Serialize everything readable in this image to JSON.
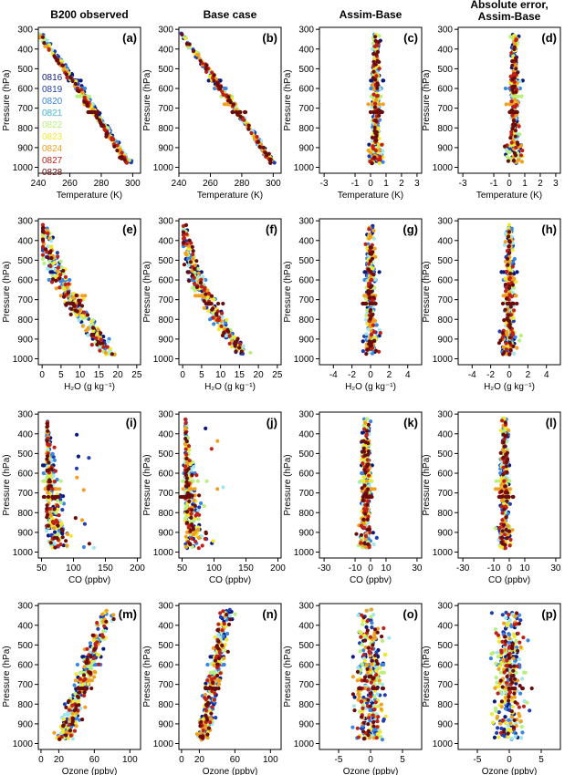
{
  "figure": {
    "column_titles": [
      "B200 observed",
      "Base case",
      "Assim-Base",
      "Absolute error,\nAssim-Base"
    ],
    "flight_colors": {
      "0816": "#0a1a7a",
      "0819": "#1f3fb0",
      "0820": "#3a86e0",
      "0821": "#9fe6f0",
      "0822": "#b8f07a",
      "0823": "#f2e830",
      "0824": "#f0a020",
      "0827": "#c02018",
      "0828": "#6a0c0c"
    },
    "legend_labels": [
      "0816",
      "0819",
      "0820",
      "0821",
      "0822",
      "0823",
      "0824",
      "0827",
      "0828"
    ]
  },
  "chart_data": [
    {
      "id": "a",
      "type": "scatter",
      "label": "(a)",
      "xlabel": "Temperature (K)",
      "ylabel": "Pressure (hPa)",
      "xlim": [
        240,
        305
      ],
      "ylim": [
        1030,
        290
      ],
      "xticks": [
        "240",
        "260",
        "280",
        "300"
      ],
      "yticks": [
        "300",
        "400",
        "500",
        "600",
        "700",
        "800",
        "900",
        "1000"
      ],
      "profile": "temp_obs"
    },
    {
      "id": "b",
      "type": "scatter",
      "label": "(b)",
      "xlabel": "Temperature (K)",
      "ylabel": "",
      "xlim": [
        240,
        305
      ],
      "ylim": [
        1030,
        290
      ],
      "xticks": [
        "240",
        "260",
        "280",
        "300"
      ],
      "yticks": [
        "300",
        "400",
        "500",
        "600",
        "700",
        "800",
        "900",
        "1000"
      ],
      "profile": "temp_base"
    },
    {
      "id": "c",
      "type": "scatter",
      "label": "(c)",
      "xlabel": "Temperature (K)",
      "ylabel": "",
      "xlim": [
        -3.3,
        3.3
      ],
      "ylim": [
        1030,
        290
      ],
      "xticks": [
        "-3",
        "-1",
        "0",
        "1",
        "2",
        "3"
      ],
      "yticks": [
        "300",
        "400",
        "500",
        "600",
        "700",
        "800",
        "900",
        "1000"
      ],
      "profile": "temp_diff"
    },
    {
      "id": "d",
      "type": "scatter",
      "label": "(d)",
      "xlabel": "Temperature (K)",
      "ylabel": "",
      "xlim": [
        -3.3,
        3.3
      ],
      "ylim": [
        1030,
        290
      ],
      "xticks": [
        "-3",
        "-1",
        "0",
        "1",
        "2",
        "3"
      ],
      "yticks": [
        "300",
        "400",
        "500",
        "600",
        "700",
        "800",
        "900",
        "1000"
      ],
      "profile": "temp_diff"
    },
    {
      "id": "e",
      "type": "scatter",
      "label": "(e)",
      "xlabel": "H₂O (g kg⁻¹)",
      "ylabel": "Pressure (hPa)",
      "xlim": [
        -1,
        26
      ],
      "ylim": [
        1030,
        290
      ],
      "xticks": [
        "0",
        "5",
        "10",
        "15",
        "20",
        "25"
      ],
      "yticks": [
        "300",
        "400",
        "500",
        "600",
        "700",
        "800",
        "900",
        "1000"
      ],
      "profile": "h2o_obs"
    },
    {
      "id": "f",
      "type": "scatter",
      "label": "(f)",
      "xlabel": "H₂O (g kg⁻¹)",
      "ylabel": "Pressure (hPa)",
      "xlim": [
        -1,
        26
      ],
      "ylim": [
        1030,
        290
      ],
      "xticks": [
        "0",
        "5",
        "10",
        "15",
        "20",
        "25"
      ],
      "yticks": [
        "300",
        "400",
        "500",
        "600",
        "700",
        "800",
        "900",
        "1000"
      ],
      "profile": "h2o_base"
    },
    {
      "id": "g",
      "type": "scatter",
      "label": "(g)",
      "xlabel": "H₂O (g kg⁻¹)",
      "ylabel": "Pressure (hPa)",
      "xlim": [
        -5.5,
        5.5
      ],
      "ylim": [
        1030,
        290
      ],
      "xticks": [
        "-4",
        "-2",
        "0",
        "2",
        "4"
      ],
      "yticks": [
        "300",
        "400",
        "500",
        "600",
        "700",
        "800",
        "900",
        "1000"
      ],
      "profile": "h2o_diff"
    },
    {
      "id": "h",
      "type": "scatter",
      "label": "(h)",
      "xlabel": "H₂O (g kg⁻¹)",
      "ylabel": "Pressure (hPa)",
      "xlim": [
        -5.5,
        5.5
      ],
      "ylim": [
        1030,
        290
      ],
      "xticks": [
        "-4",
        "-2",
        "0",
        "2",
        "4"
      ],
      "yticks": [
        "300",
        "400",
        "500",
        "600",
        "700",
        "800",
        "900",
        "1000"
      ],
      "profile": "h2o_diff"
    },
    {
      "id": "i",
      "type": "scatter",
      "label": "(i)",
      "xlabel": "CO (ppbv)",
      "ylabel": "Pressure (hPa)",
      "xlim": [
        45,
        205
      ],
      "ylim": [
        1030,
        290
      ],
      "xticks": [
        "50",
        "100",
        "150",
        "200"
      ],
      "yticks": [
        "300",
        "400",
        "500",
        "600",
        "700",
        "800",
        "900",
        "1000"
      ],
      "profile": "co_obs"
    },
    {
      "id": "j",
      "type": "scatter",
      "label": "(j)",
      "xlabel": "CO (ppbv)",
      "ylabel": "Pressure (hPa)",
      "xlim": [
        45,
        205
      ],
      "ylim": [
        1030,
        290
      ],
      "xticks": [
        "50",
        "100",
        "150",
        "200"
      ],
      "yticks": [
        "300",
        "400",
        "500",
        "600",
        "700",
        "800",
        "900",
        "1000"
      ],
      "profile": "co_base"
    },
    {
      "id": "k",
      "type": "scatter",
      "label": "(k)",
      "xlabel": "CO (ppbv)",
      "ylabel": "Pressure (hPa)",
      "xlim": [
        -33,
        33
      ],
      "ylim": [
        1030,
        290
      ],
      "xticks": [
        "-30",
        "-10",
        "0",
        "10",
        "30"
      ],
      "yticks": [
        "300",
        "400",
        "500",
        "600",
        "700",
        "800",
        "900",
        "1000"
      ],
      "profile": "co_diff"
    },
    {
      "id": "l",
      "type": "scatter",
      "label": "(l)",
      "xlabel": "CO (ppbv)",
      "ylabel": "Pressure (hPa)",
      "xlim": [
        -33,
        33
      ],
      "ylim": [
        1030,
        290
      ],
      "xticks": [
        "-30",
        "-10",
        "0",
        "10",
        "30"
      ],
      "yticks": [
        "300",
        "400",
        "500",
        "600",
        "700",
        "800",
        "900",
        "1000"
      ],
      "profile": "co_diff"
    },
    {
      "id": "m",
      "type": "scatter",
      "label": "(m)",
      "xlabel": "Ozone (ppbv)",
      "ylabel": "Pressure (hPa)",
      "xlim": [
        -3,
        112
      ],
      "ylim": [
        1030,
        290
      ],
      "xticks": [
        "0",
        "20",
        "60",
        "100"
      ],
      "yticks": [
        "300",
        "400",
        "500",
        "600",
        "700",
        "800",
        "900",
        "1000"
      ],
      "profile": "o3_obs"
    },
    {
      "id": "n",
      "type": "scatter",
      "label": "(n)",
      "xlabel": "Ozone (ppbv)",
      "ylabel": "Pressure (hPa)",
      "xlim": [
        -3,
        112
      ],
      "ylim": [
        1030,
        290
      ],
      "xticks": [
        "0",
        "20",
        "60",
        "100"
      ],
      "yticks": [
        "300",
        "400",
        "500",
        "600",
        "700",
        "800",
        "900",
        "1000"
      ],
      "profile": "o3_base"
    },
    {
      "id": "o",
      "type": "scatter",
      "label": "(o)",
      "xlabel": "Ozone (ppbv)",
      "ylabel": "Pressure (hPa)",
      "xlim": [
        -8,
        8
      ],
      "ylim": [
        1030,
        290
      ],
      "xticks": [
        "-5",
        "0",
        "5"
      ],
      "yticks": [
        "300",
        "400",
        "500",
        "600",
        "700",
        "800",
        "900",
        "1000"
      ],
      "profile": "o3_diff"
    },
    {
      "id": "p",
      "type": "scatter",
      "label": "(p)",
      "xlabel": "Ozone (ppbv)",
      "ylabel": "Pressure (hPa)",
      "xlim": [
        -8,
        8
      ],
      "ylim": [
        1030,
        290
      ],
      "xticks": [
        "-5",
        "0",
        "5"
      ],
      "yticks": [
        "300",
        "400",
        "500",
        "600",
        "700",
        "800",
        "900",
        "1000"
      ],
      "profile": "o3_diff"
    }
  ]
}
